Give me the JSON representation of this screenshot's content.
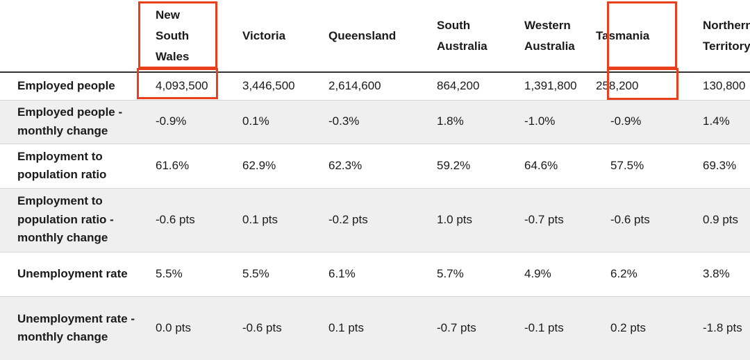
{
  "table": {
    "columns": [
      "",
      "New South Wales",
      "Victoria",
      "Queensland",
      "South Australia",
      "Western Australia",
      "Tasmania",
      "Northern Territory"
    ],
    "rows": [
      {
        "label": "Employed people",
        "cells": [
          "4,093,500",
          "3,446,500",
          "2,614,600",
          "864,200",
          "1,391,800",
          "258,200",
          "130,800"
        ]
      },
      {
        "label": "Employed people - monthly change",
        "cells": [
          "-0.9%",
          "0.1%",
          "-0.3%",
          "1.8%",
          "-1.0%",
          "-0.9%",
          "1.4%"
        ]
      },
      {
        "label": "Employment to population ratio",
        "cells": [
          "61.6%",
          "62.9%",
          "62.3%",
          "59.2%",
          "64.6%",
          "57.5%",
          "69.3%"
        ]
      },
      {
        "label": "Employment to population ratio - monthly change",
        "cells": [
          "-0.6 pts",
          "0.1 pts",
          "-0.2 pts",
          "1.0 pts",
          "-0.7 pts",
          "-0.6 pts",
          "0.9 pts"
        ]
      },
      {
        "label": "Unemployment rate",
        "cells": [
          "5.5%",
          "5.5%",
          "6.1%",
          "5.7%",
          "4.9%",
          "6.2%",
          "3.8%"
        ]
      },
      {
        "label": "Unemployment rate - monthly change",
        "cells": [
          "0.0 pts",
          "-0.6 pts",
          "0.1 pts",
          "-0.7 pts",
          "-0.1 pts",
          "0.2 pts",
          "-1.8 pts"
        ]
      }
    ]
  },
  "highlights": {
    "color": "#e8401c",
    "columns": [
      "New South Wales",
      "Tasmania"
    ]
  }
}
